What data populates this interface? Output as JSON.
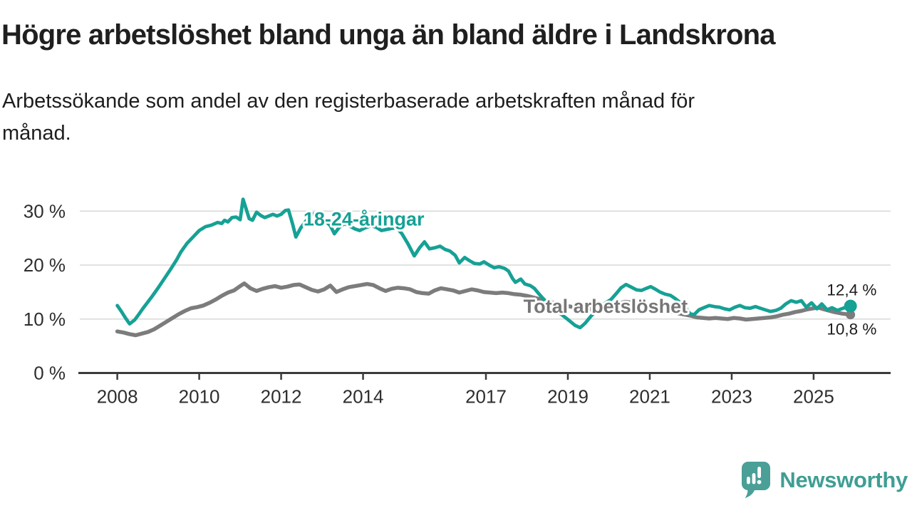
{
  "header": {
    "title": "Högre arbetslöshet bland unga än bland äldre i Landskrona",
    "subtitle": "Arbetssökande som andel av den registerbaserade arbetskraften månad för månad."
  },
  "footer": {
    "brand": "Newsworthy"
  },
  "colors": {
    "teal": "#16a195",
    "gray": "#7c7c7c",
    "grid": "#d9d9d9",
    "axis": "#3b3b3b",
    "tick_text": "#2e2e2e",
    "logo": "#4a9f97"
  },
  "chart_data": {
    "type": "line",
    "title": "Högre arbetslöshet bland unga än bland äldre i Landskrona",
    "xlabel": "",
    "ylabel": "",
    "x_ticks": [
      2008,
      2010,
      2012,
      2014,
      2017,
      2019,
      2021,
      2023,
      2025
    ],
    "y_ticks": [
      0,
      10,
      20,
      30
    ],
    "y_suffix": " %",
    "xlim": [
      2007.05,
      2026.88
    ],
    "ylim": [
      0,
      33.6
    ],
    "grid": true,
    "legend_position": "inline-labels",
    "series": [
      {
        "name": "18-24-åringar",
        "color": "#16a195",
        "width": 4.8,
        "dot_r": 9,
        "end_value_label": "12,4 %",
        "x": [
          2008.0,
          2008.1,
          2008.2,
          2008.3,
          2008.42,
          2008.5,
          2008.62,
          2008.72,
          2008.85,
          2009.0,
          2009.15,
          2009.3,
          2009.45,
          2009.55,
          2009.7,
          2009.85,
          2010.0,
          2010.15,
          2010.3,
          2010.45,
          2010.55,
          2010.62,
          2010.7,
          2010.8,
          2010.9,
          2011.0,
          2011.07,
          2011.13,
          2011.22,
          2011.3,
          2011.4,
          2011.5,
          2011.6,
          2011.7,
          2011.8,
          2011.9,
          2012.0,
          2012.1,
          2012.18,
          2012.28,
          2012.36,
          2012.48,
          2012.6,
          2012.72,
          2012.85,
          2012.95,
          2013.08,
          2013.2,
          2013.3,
          2013.42,
          2013.55,
          2013.68,
          2013.8,
          2013.92,
          2014.05,
          2014.2,
          2014.32,
          2014.45,
          2014.58,
          2014.7,
          2014.82,
          2014.95,
          2015.1,
          2015.25,
          2015.38,
          2015.5,
          2015.62,
          2015.75,
          2015.88,
          2016.0,
          2016.12,
          2016.25,
          2016.35,
          2016.48,
          2016.6,
          2016.72,
          2016.85,
          2016.95,
          2017.08,
          2017.2,
          2017.32,
          2017.45,
          2017.55,
          2017.65,
          2017.72,
          2017.85,
          2017.95,
          2018.08,
          2018.18,
          2018.3,
          2018.42,
          2018.55,
          2018.68,
          2018.8,
          2018.92,
          2019.05,
          2019.18,
          2019.3,
          2019.42,
          2019.55,
          2019.68,
          2019.8,
          2019.92,
          2020.05,
          2020.18,
          2020.3,
          2020.42,
          2020.55,
          2020.68,
          2020.8,
          2020.92,
          2021.02,
          2021.12,
          2021.25,
          2021.38,
          2021.5,
          2021.62,
          2021.75,
          2021.88,
          2021.98,
          2022.08,
          2022.2,
          2022.32,
          2022.45,
          2022.58,
          2022.7,
          2022.82,
          2022.95,
          2023.08,
          2023.2,
          2023.32,
          2023.45,
          2023.58,
          2023.7,
          2023.82,
          2023.95,
          2024.08,
          2024.2,
          2024.32,
          2024.45,
          2024.58,
          2024.7,
          2024.82,
          2024.95,
          2025.08,
          2025.2,
          2025.33,
          2025.45,
          2025.58,
          2025.72,
          2025.9
        ],
        "y": [
          12.5,
          11.4,
          10.2,
          9.1,
          9.8,
          10.6,
          11.9,
          12.9,
          14.2,
          15.8,
          17.5,
          19.2,
          21.0,
          22.4,
          24.0,
          25.2,
          26.4,
          27.1,
          27.4,
          27.9,
          27.7,
          28.3,
          28.0,
          28.8,
          28.9,
          28.4,
          32.2,
          30.8,
          28.6,
          28.3,
          29.8,
          29.2,
          28.8,
          29.1,
          29.4,
          29.1,
          29.4,
          30.1,
          30.2,
          27.6,
          25.2,
          26.9,
          28.1,
          29.3,
          29.6,
          29.0,
          28.2,
          27.3,
          25.8,
          27.0,
          27.7,
          27.2,
          26.7,
          26.4,
          26.9,
          27.3,
          27.0,
          26.4,
          26.6,
          26.8,
          26.9,
          25.8,
          23.9,
          21.7,
          23.2,
          24.3,
          23.0,
          23.2,
          23.5,
          22.9,
          22.6,
          21.8,
          20.4,
          21.4,
          20.8,
          20.3,
          20.2,
          20.6,
          20.0,
          19.5,
          19.7,
          19.4,
          18.9,
          17.5,
          16.8,
          17.4,
          16.5,
          16.2,
          15.7,
          14.6,
          13.6,
          12.6,
          11.8,
          11.1,
          10.4,
          9.6,
          8.8,
          8.4,
          9.2,
          10.4,
          11.5,
          12.3,
          13.0,
          13.6,
          14.7,
          15.8,
          16.4,
          15.9,
          15.4,
          15.3,
          15.7,
          16.0,
          15.6,
          15.0,
          14.6,
          14.4,
          13.8,
          13.0,
          12.0,
          11.0,
          10.8,
          11.7,
          12.1,
          12.5,
          12.3,
          12.2,
          11.9,
          11.7,
          12.2,
          12.5,
          12.1,
          12.0,
          12.3,
          12.0,
          11.7,
          11.4,
          11.6,
          12.0,
          12.8,
          13.4,
          13.1,
          13.4,
          12.2,
          13.0,
          11.9,
          12.8,
          11.7,
          12.1,
          11.6,
          12.0,
          12.4
        ]
      },
      {
        "name": "Total arbetslöshet",
        "color": "#7c7c7c",
        "width": 5.5,
        "dot_r": 6.5,
        "end_value_label": "10,8 %",
        "x": [
          2008.0,
          2008.15,
          2008.3,
          2008.45,
          2008.6,
          2008.75,
          2008.9,
          2009.05,
          2009.2,
          2009.35,
          2009.5,
          2009.65,
          2009.8,
          2009.95,
          2010.1,
          2010.25,
          2010.4,
          2010.55,
          2010.7,
          2010.85,
          2011.0,
          2011.1,
          2011.25,
          2011.4,
          2011.55,
          2011.7,
          2011.85,
          2012.0,
          2012.15,
          2012.3,
          2012.45,
          2012.6,
          2012.75,
          2012.9,
          2013.05,
          2013.2,
          2013.35,
          2013.5,
          2013.65,
          2013.8,
          2013.95,
          2014.1,
          2014.25,
          2014.4,
          2014.55,
          2014.7,
          2014.85,
          2015.0,
          2015.15,
          2015.3,
          2015.45,
          2015.6,
          2015.75,
          2015.9,
          2016.05,
          2016.2,
          2016.35,
          2016.5,
          2016.65,
          2016.8,
          2016.95,
          2017.1,
          2017.25,
          2017.4,
          2017.55,
          2017.7,
          2017.85,
          2018.0,
          2018.2,
          2018.4,
          2018.6,
          2018.8,
          2019.0,
          2019.2,
          2019.4,
          2019.6,
          2019.8,
          2020.0,
          2020.2,
          2020.4,
          2020.6,
          2020.8,
          2021.0,
          2021.2,
          2021.4,
          2021.6,
          2021.8,
          2022.0,
          2022.15,
          2022.3,
          2022.45,
          2022.6,
          2022.75,
          2022.9,
          2023.05,
          2023.2,
          2023.35,
          2023.5,
          2023.65,
          2023.8,
          2023.95,
          2024.1,
          2024.25,
          2024.4,
          2024.55,
          2024.7,
          2024.85,
          2025.0,
          2025.12,
          2025.3,
          2025.5,
          2025.7,
          2025.9
        ],
        "y": [
          7.7,
          7.5,
          7.2,
          7.0,
          7.3,
          7.6,
          8.1,
          8.8,
          9.5,
          10.2,
          10.9,
          11.5,
          12.0,
          12.2,
          12.5,
          13.0,
          13.6,
          14.3,
          14.9,
          15.3,
          16.1,
          16.6,
          15.7,
          15.2,
          15.6,
          15.9,
          16.1,
          15.8,
          16.0,
          16.3,
          16.4,
          15.9,
          15.4,
          15.1,
          15.5,
          16.2,
          15.0,
          15.5,
          15.9,
          16.1,
          16.3,
          16.5,
          16.3,
          15.7,
          15.2,
          15.6,
          15.8,
          15.7,
          15.5,
          15.0,
          14.8,
          14.7,
          15.3,
          15.7,
          15.5,
          15.3,
          14.9,
          15.2,
          15.5,
          15.3,
          15.0,
          14.9,
          14.8,
          14.9,
          14.8,
          14.6,
          14.5,
          14.3,
          13.9,
          13.5,
          13.1,
          12.7,
          12.4,
          12.1,
          11.9,
          11.8,
          11.9,
          12.2,
          12.8,
          13.2,
          13.0,
          12.7,
          12.4,
          12.0,
          11.6,
          11.2,
          10.9,
          10.6,
          10.3,
          10.2,
          10.1,
          10.2,
          10.1,
          10.0,
          10.2,
          10.1,
          9.9,
          10.0,
          10.1,
          10.2,
          10.3,
          10.5,
          10.8,
          11.0,
          11.3,
          11.5,
          11.8,
          12.0,
          12.1,
          11.7,
          11.3,
          11.0,
          10.8
        ]
      }
    ],
    "annotations": [
      {
        "text": "18-24-åringar",
        "x": 2014.02,
        "y": 28.5,
        "color": "#16a195",
        "size": 27,
        "weight": 700,
        "halo": true
      },
      {
        "text": "Total arbetslöshet",
        "x": 2019.92,
        "y": 12.35,
        "color": "#767676",
        "size": 27,
        "weight": 700,
        "halo": true
      },
      {
        "text": "12,4 %",
        "x": 2025.93,
        "y": 15.6,
        "color": "#1c1c1c",
        "size": 22.5,
        "weight": 400,
        "halo": true
      },
      {
        "text": "10,8 %",
        "x": 2025.93,
        "y": 8.3,
        "color": "#1c1c1c",
        "size": 22.5,
        "weight": 400,
        "halo": true
      }
    ]
  }
}
